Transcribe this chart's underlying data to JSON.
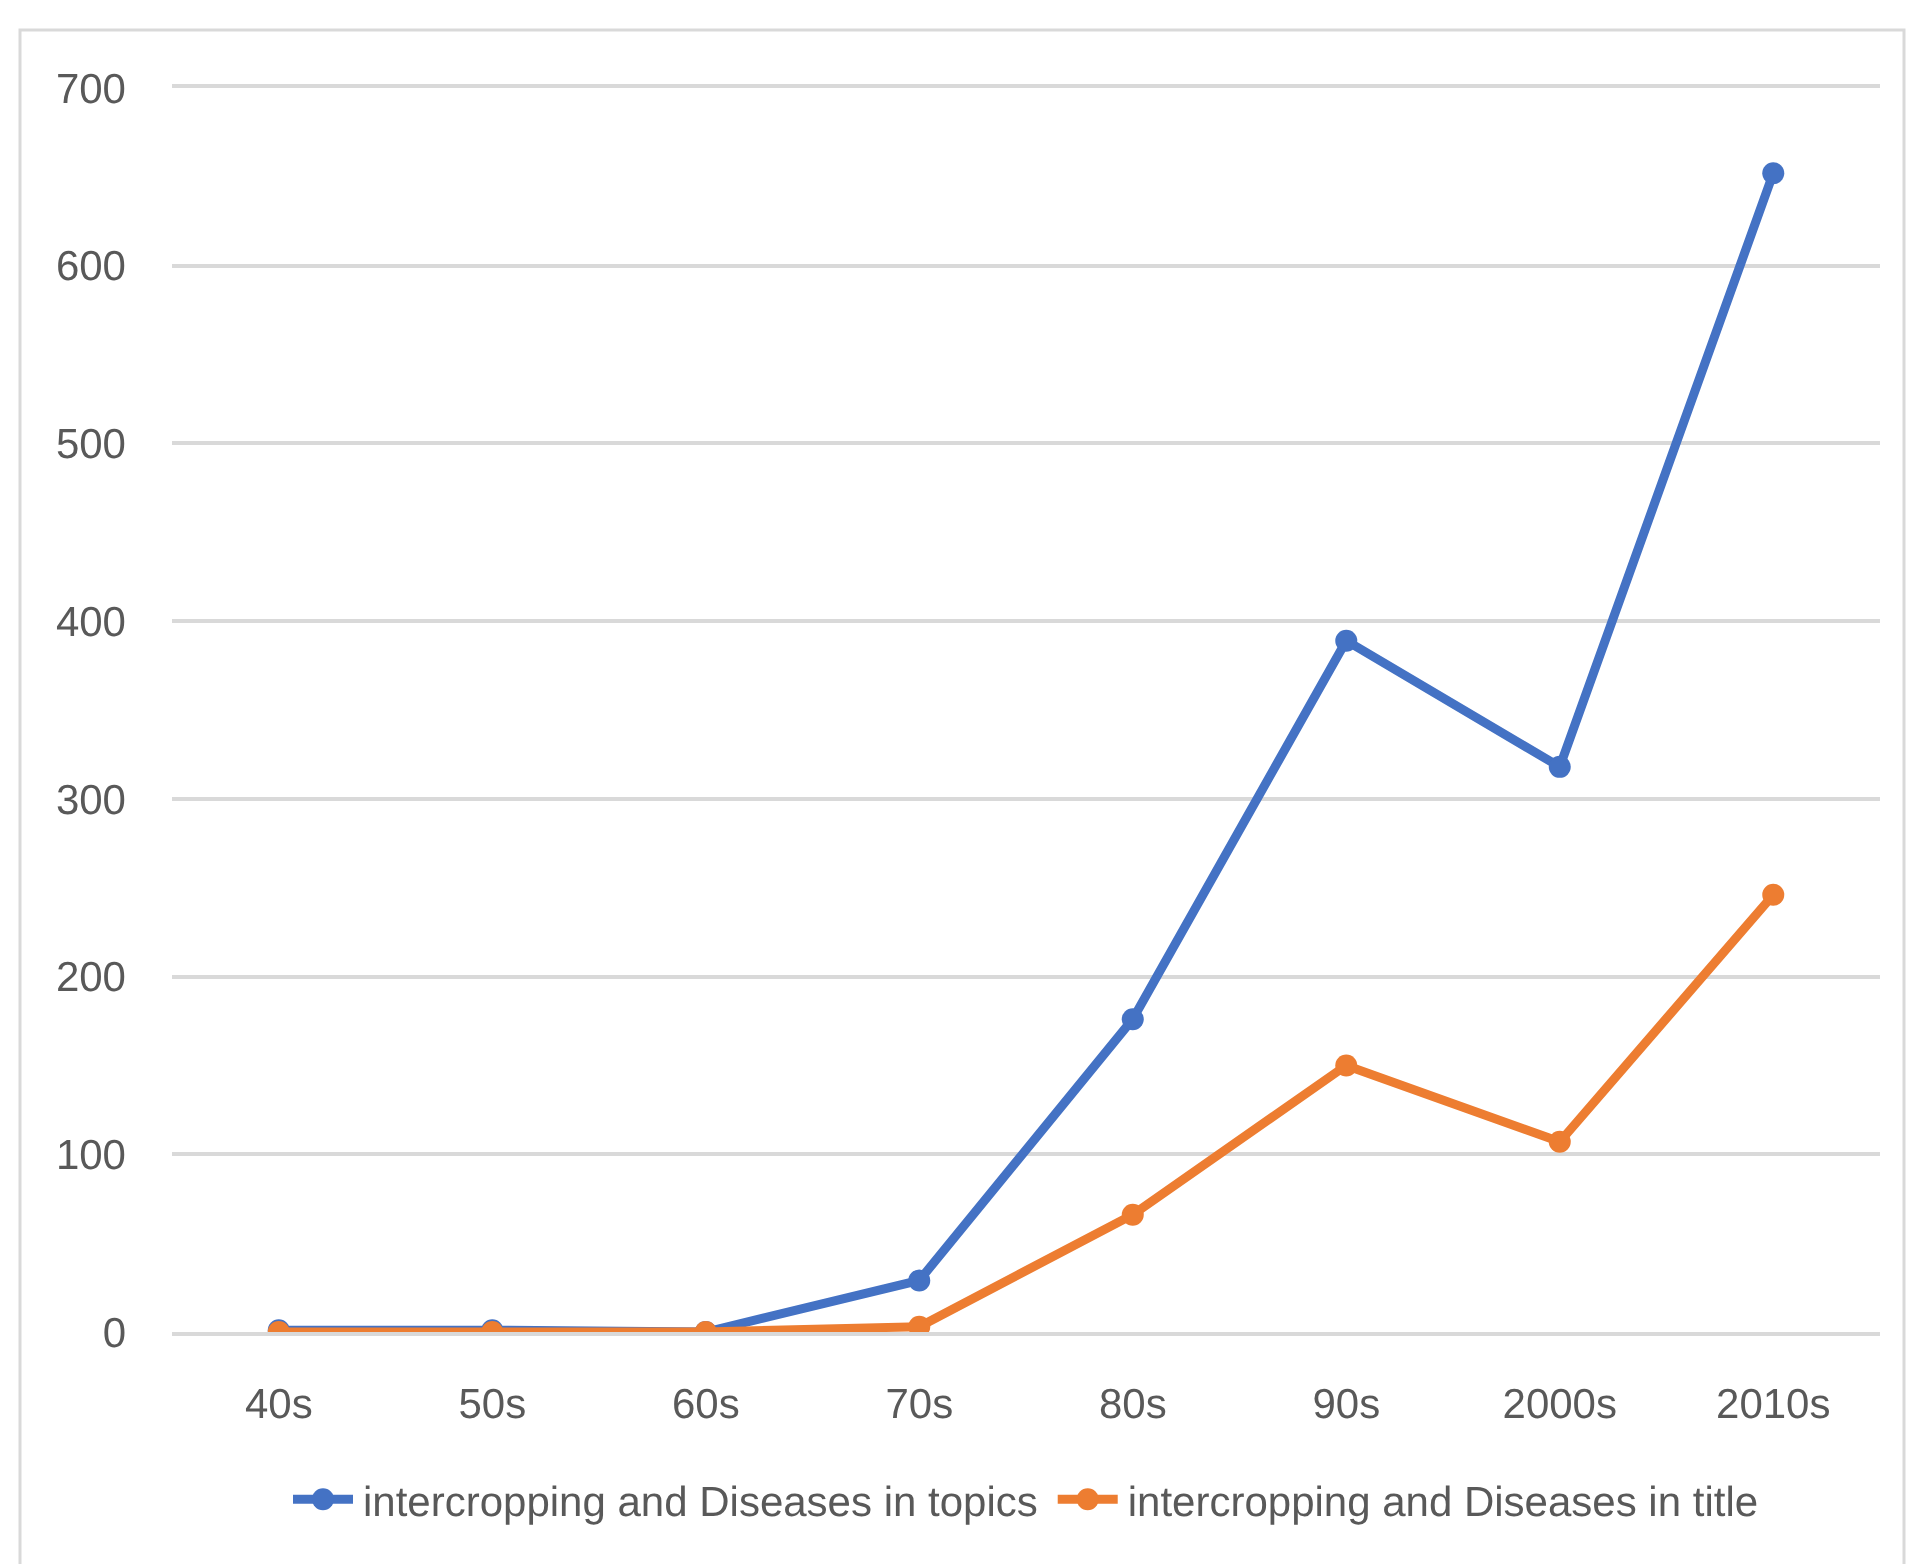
{
  "chart_data": {
    "type": "line",
    "categories": [
      "40s",
      "50s",
      "60s",
      "70s",
      "80s",
      "90s",
      "2000s",
      "2010s"
    ],
    "series": [
      {
        "name": "intercropping and Diseases in topics",
        "color": "#4472c4",
        "values": [
          1,
          1,
          0,
          29,
          176,
          389,
          318,
          652
        ]
      },
      {
        "name": "intercropping and Diseases in title",
        "color": "#ed7d31",
        "values": [
          0,
          0,
          0,
          3,
          66,
          150,
          107,
          246
        ]
      }
    ],
    "ylim": [
      0,
      700
    ],
    "yticks": [
      0,
      100,
      200,
      300,
      400,
      500,
      600,
      700
    ],
    "grid": "y",
    "legend": "bottom",
    "marker": "circle",
    "line_style": "solid"
  }
}
